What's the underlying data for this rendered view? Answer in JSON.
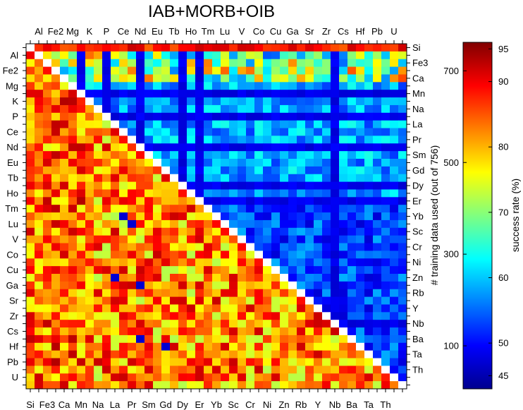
{
  "chart_data": {
    "type": "heatmap",
    "title": "IAB+MORB+OIB",
    "top_labels": [
      "Al",
      "Fe2",
      "Mg",
      "K",
      "P",
      "Ce",
      "Nd",
      "Eu",
      "Tb",
      "Ho",
      "Tm",
      "Lu",
      "V",
      "Co",
      "Cu",
      "Ga",
      "Sr",
      "Zr",
      "Cs",
      "Hf",
      "Pb",
      "U"
    ],
    "left_labels": [
      "Al",
      "Fe2",
      "Mg",
      "K",
      "P",
      "Ce",
      "Nd",
      "Eu",
      "Tb",
      "Ho",
      "Tm",
      "Lu",
      "V",
      "Co",
      "Cu",
      "Ga",
      "Sr",
      "Zr",
      "Cs",
      "Hf",
      "Pb",
      "U"
    ],
    "bottom_labels": [
      "Si",
      "Fe3",
      "Ca",
      "Mn",
      "Na",
      "La",
      "Pr",
      "Sm",
      "Gd",
      "Dy",
      "Er",
      "Yb",
      "Sc",
      "Cr",
      "Ni",
      "Zn",
      "Rb",
      "Y",
      "Nb",
      "Ba",
      "Ta",
      "Th"
    ],
    "right_labels": [
      "Si",
      "Fe3",
      "Ca",
      "Mn",
      "Na",
      "La",
      "Pr",
      "Sm",
      "Gd",
      "Dy",
      "Er",
      "Yb",
      "Sc",
      "Cr",
      "Ni",
      "Zn",
      "Rb",
      "Y",
      "Nb",
      "Ba",
      "Ta",
      "Th"
    ],
    "matrix_size": 45,
    "colorbar": {
      "label": "success rate (%)",
      "ticks": [
        45,
        50,
        60,
        70,
        80,
        90,
        95
      ],
      "range": [
        43,
        96
      ]
    },
    "colorbar_left_axis": {
      "label": "# training data used (out of 756)",
      "ticks": [
        100,
        300,
        500,
        700
      ]
    },
    "strong_blue_bands_upper": [
      6,
      9,
      13,
      18,
      20,
      36
    ],
    "strong_blue_cells_lower": [
      [
        22,
        11
      ],
      [
        23,
        12
      ],
      [
        30,
        10
      ],
      [
        31,
        13
      ],
      [
        38,
        13
      ],
      [
        39,
        16
      ]
    ]
  }
}
